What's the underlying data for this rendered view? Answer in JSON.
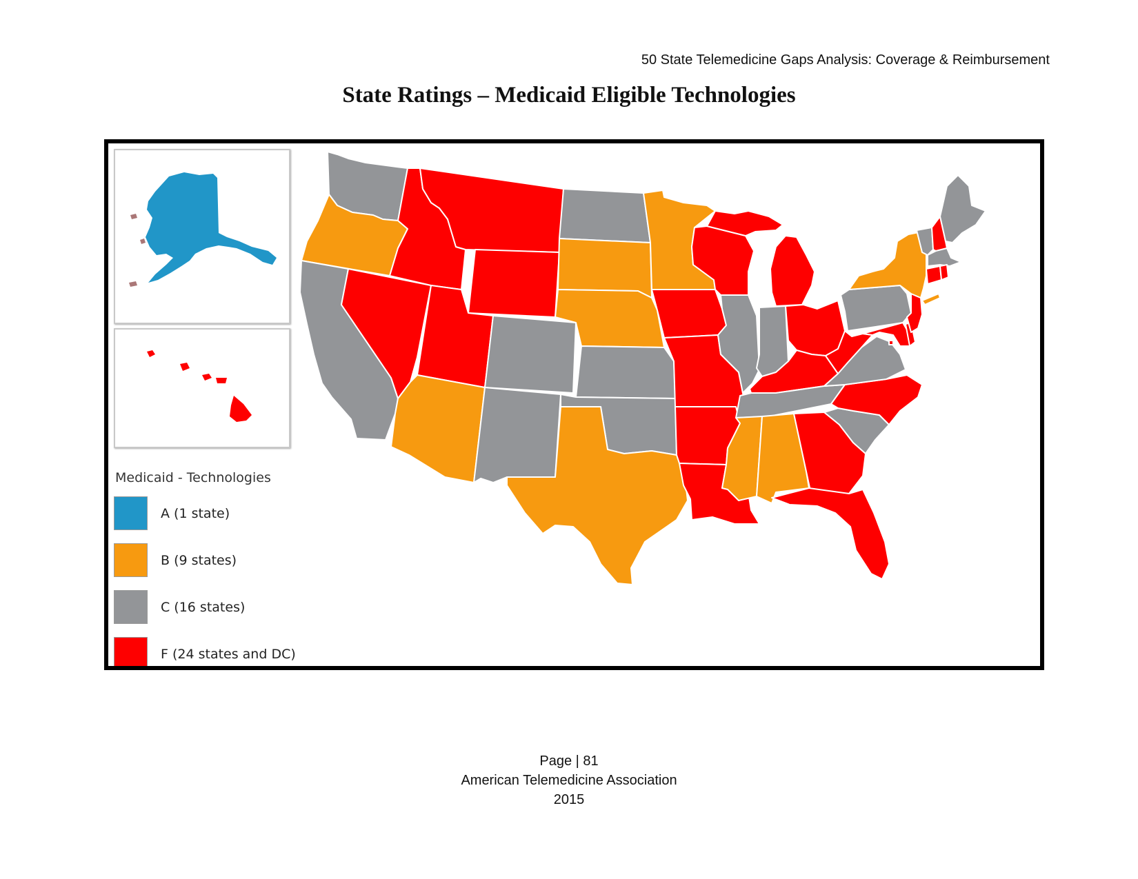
{
  "header": {
    "running_title": "50 State Telemedicine Gaps Analysis:  Coverage & Reimbursement"
  },
  "title": "State Ratings – Medicaid Eligible Technologies",
  "colors": {
    "A": "#2196c8",
    "B": "#f79a10",
    "C": "#939598",
    "F": "#fe0000"
  },
  "legend": {
    "title": "Medicaid - Technologies",
    "items": [
      {
        "grade": "A",
        "label": "A (1 state)"
      },
      {
        "grade": "B",
        "label": "B (9 states)"
      },
      {
        "grade": "C",
        "label": "C (16 states)"
      },
      {
        "grade": "F",
        "label": "F (24 states and DC)"
      }
    ]
  },
  "map": {
    "ratings": {
      "AK": "A",
      "OR": "B",
      "AZ": "B",
      "TX": "B",
      "SD": "B",
      "NE": "B",
      "MN": "B",
      "MS": "B",
      "AL": "B",
      "NY": "B",
      "WA": "C",
      "CA": "C",
      "CO": "C",
      "NM": "C",
      "ND": "C",
      "KS": "C",
      "OK": "C",
      "IL": "C",
      "IN": "C",
      "TN": "C",
      "SC": "C",
      "VA": "C",
      "PA": "C",
      "VT": "C",
      "ME": "C",
      "MA": "C",
      "HI": "F",
      "ID": "F",
      "MT": "F",
      "WY": "F",
      "NV": "F",
      "UT": "F",
      "IA": "F",
      "MO": "F",
      "AR": "F",
      "LA": "F",
      "WI": "F",
      "MI": "F",
      "OH": "F",
      "KY": "F",
      "WV": "F",
      "NC": "F",
      "GA": "F",
      "FL": "F",
      "MD": "F",
      "DE": "F",
      "NJ": "F",
      "CT": "F",
      "RI": "F",
      "NH": "F",
      "DC": "F"
    }
  },
  "footer": {
    "page": "Page | 81",
    "org": "American Telemedicine Association",
    "year": "2015"
  }
}
